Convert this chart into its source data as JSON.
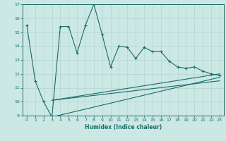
{
  "xlabel": "Humidex (Indice chaleur)",
  "bg_color": "#cce8e4",
  "grid_color": "#b8d8d4",
  "line_color": "#1a6b6b",
  "xlim": [
    -0.5,
    23.5
  ],
  "ylim": [
    9,
    17
  ],
  "xticks": [
    0,
    1,
    2,
    3,
    4,
    5,
    6,
    7,
    8,
    9,
    10,
    11,
    12,
    13,
    14,
    15,
    16,
    17,
    18,
    19,
    20,
    21,
    22,
    23
  ],
  "yticks": [
    9,
    10,
    11,
    12,
    13,
    14,
    15,
    16,
    17
  ],
  "main_x": [
    0,
    1,
    2,
    3,
    4,
    5,
    6,
    7,
    8,
    9,
    10,
    11,
    12,
    13,
    14,
    15,
    16,
    17,
    18,
    19,
    20,
    21,
    22,
    23
  ],
  "main_y": [
    15.5,
    11.5,
    10.0,
    8.9,
    15.4,
    15.4,
    13.5,
    15.5,
    17.0,
    14.8,
    12.5,
    14.0,
    13.9,
    13.1,
    13.9,
    13.6,
    13.6,
    12.9,
    12.5,
    12.4,
    12.5,
    12.2,
    12.0,
    11.9
  ],
  "line1_x": [
    3,
    23
  ],
  "line1_y": [
    10.1,
    12.0
  ],
  "line2_x": [
    3,
    23
  ],
  "line2_y": [
    10.1,
    11.5
  ],
  "line3_x": [
    3,
    23
  ],
  "line3_y": [
    8.9,
    11.75
  ]
}
